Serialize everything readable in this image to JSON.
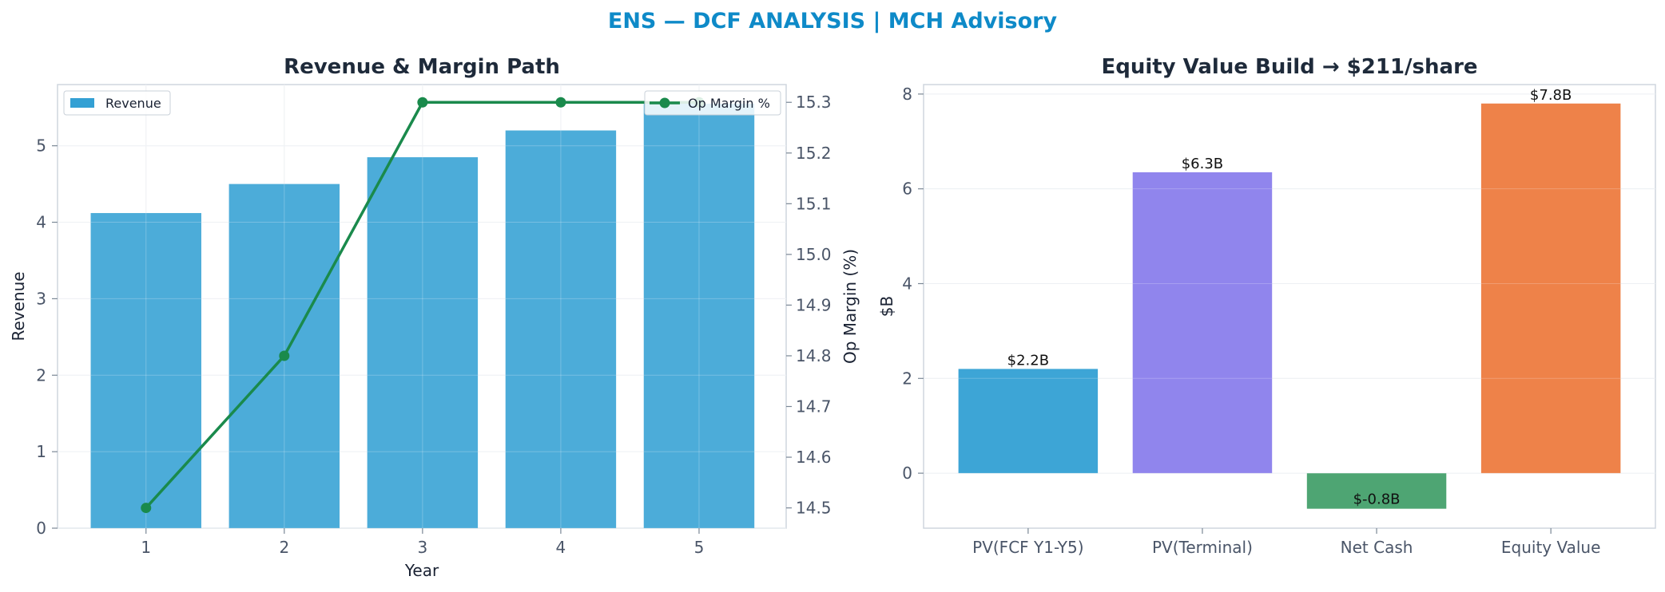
{
  "figure": {
    "title": "ENS — DCF ANALYSIS | MCH Advisory",
    "title_color": "#0e8ac8"
  },
  "chart_data": [
    {
      "type": "bar",
      "title": "Revenue & Margin Path",
      "xlabel": "Year",
      "ylabel": "Revenue",
      "y2label": "Op Margin (%)",
      "categories": [
        "1",
        "2",
        "3",
        "4",
        "5"
      ],
      "ylim": [
        0,
        5.8
      ],
      "yticks": [
        "0",
        "1",
        "2",
        "3",
        "4",
        "5"
      ],
      "y2lim": [
        14.46,
        15.335
      ],
      "y2ticks": [
        "14.5",
        "14.6",
        "14.7",
        "14.8",
        "14.9",
        "15.0",
        "15.1",
        "15.2",
        "15.3"
      ],
      "grid": true,
      "series": [
        {
          "name": "Revenue",
          "kind": "bar",
          "axis": "left",
          "color": "#33a0d4",
          "values": [
            4.12,
            4.5,
            4.85,
            5.2,
            5.55
          ]
        },
        {
          "name": "Op Margin %",
          "kind": "line",
          "axis": "right",
          "color": "#1a8a4c",
          "values": [
            14.5,
            14.8,
            15.3,
            15.3,
            15.3
          ]
        }
      ],
      "legend": [
        {
          "label": "Revenue",
          "placement": "top-left"
        },
        {
          "label": "Op Margin %",
          "placement": "top-right"
        }
      ]
    },
    {
      "type": "bar",
      "title": "Equity Value Build → $211/share",
      "xlabel": "",
      "ylabel": "$B",
      "categories": [
        "PV(FCF Y1-Y5)",
        "PV(Terminal)",
        "Net Cash",
        "Equity Value"
      ],
      "values": [
        2.2,
        6.35,
        -0.75,
        7.8
      ],
      "data_labels": [
        "$2.2B",
        "$6.3B",
        "$-0.8B",
        "$7.8B"
      ],
      "colors": [
        "#33a0d4",
        "#8a7eec",
        "#45a06c",
        "#ed7b3f"
      ],
      "ylim": [
        -1.16,
        8.2
      ],
      "yticks": [
        "0",
        "2",
        "4",
        "6",
        "8"
      ],
      "grid": true
    }
  ]
}
